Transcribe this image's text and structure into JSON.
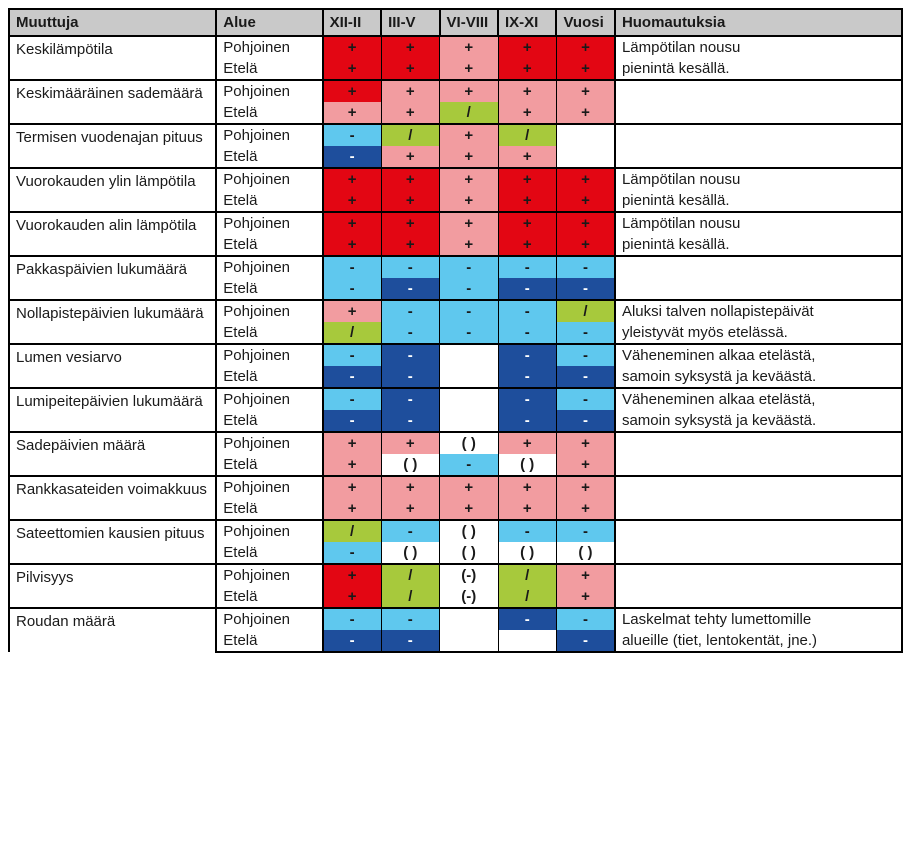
{
  "colors": {
    "red": "#e30613",
    "pink": "#f29ca0",
    "lightblue": "#5fc8ee",
    "darkblue": "#1e4e9c",
    "green": "#a7c93c",
    "white": "#ffffff",
    "header_bg": "#c9c9c9"
  },
  "headers": {
    "var": "Muuttuja",
    "alue": "Alue",
    "s1": "XII-II",
    "s2": "III-V",
    "s3": "VI-VIII",
    "s4": "IX-XI",
    "s5": "Vuosi",
    "note": "Huomautuksia"
  },
  "region_labels": {
    "north": "Pohjoinen",
    "south": "Etelä"
  },
  "rows": [
    {
      "var": "Keskilämpötila",
      "note": [
        "Lämpötilan nousu",
        "pienintä kesällä."
      ],
      "north": [
        {
          "v": "+",
          "c": "red"
        },
        {
          "v": "+",
          "c": "red"
        },
        {
          "v": "+",
          "c": "pink"
        },
        {
          "v": "+",
          "c": "red"
        },
        {
          "v": "+",
          "c": "red"
        }
      ],
      "south": [
        {
          "v": "+",
          "c": "red"
        },
        {
          "v": "+",
          "c": "red"
        },
        {
          "v": "+",
          "c": "pink"
        },
        {
          "v": "+",
          "c": "red"
        },
        {
          "v": "+",
          "c": "red"
        }
      ]
    },
    {
      "var": "Keskimääräinen sademäärä",
      "note": [
        "",
        ""
      ],
      "north": [
        {
          "v": "+",
          "c": "red"
        },
        {
          "v": "+",
          "c": "pink"
        },
        {
          "v": "+",
          "c": "pink"
        },
        {
          "v": "+",
          "c": "pink"
        },
        {
          "v": "+",
          "c": "pink"
        }
      ],
      "south": [
        {
          "v": "+",
          "c": "pink"
        },
        {
          "v": "+",
          "c": "pink"
        },
        {
          "v": "/",
          "c": "green"
        },
        {
          "v": "+",
          "c": "pink"
        },
        {
          "v": "+",
          "c": "pink"
        }
      ]
    },
    {
      "var": "Termisen vuodenajan pituus",
      "note": [
        "",
        ""
      ],
      "north": [
        {
          "v": "-",
          "c": "lightblue"
        },
        {
          "v": "/",
          "c": "green"
        },
        {
          "v": "+",
          "c": "pink"
        },
        {
          "v": "/",
          "c": "green"
        },
        {
          "v": "",
          "c": "white"
        }
      ],
      "south": [
        {
          "v": "-",
          "c": "darkblue"
        },
        {
          "v": "+",
          "c": "pink"
        },
        {
          "v": "+",
          "c": "pink"
        },
        {
          "v": "+",
          "c": "pink"
        },
        {
          "v": "",
          "c": "white"
        }
      ]
    },
    {
      "var": "Vuorokauden ylin lämpötila",
      "note": [
        "Lämpötilan nousu",
        "pienintä kesällä."
      ],
      "north": [
        {
          "v": "+",
          "c": "red"
        },
        {
          "v": "+",
          "c": "red"
        },
        {
          "v": "+",
          "c": "pink"
        },
        {
          "v": "+",
          "c": "red"
        },
        {
          "v": "+",
          "c": "red"
        }
      ],
      "south": [
        {
          "v": "+",
          "c": "red"
        },
        {
          "v": "+",
          "c": "red"
        },
        {
          "v": "+",
          "c": "pink"
        },
        {
          "v": "+",
          "c": "red"
        },
        {
          "v": "+",
          "c": "red"
        }
      ]
    },
    {
      "var": "Vuorokauden alin lämpötila",
      "note": [
        "Lämpötilan nousu",
        "pienintä kesällä."
      ],
      "north": [
        {
          "v": "+",
          "c": "red"
        },
        {
          "v": "+",
          "c": "red"
        },
        {
          "v": "+",
          "c": "pink"
        },
        {
          "v": "+",
          "c": "red"
        },
        {
          "v": "+",
          "c": "red"
        }
      ],
      "south": [
        {
          "v": "+",
          "c": "red"
        },
        {
          "v": "+",
          "c": "red"
        },
        {
          "v": "+",
          "c": "pink"
        },
        {
          "v": "+",
          "c": "red"
        },
        {
          "v": "+",
          "c": "red"
        }
      ]
    },
    {
      "var": "Pakkaspäivien lukumäärä",
      "note": [
        "",
        ""
      ],
      "north": [
        {
          "v": "-",
          "c": "lightblue"
        },
        {
          "v": "-",
          "c": "lightblue"
        },
        {
          "v": "-",
          "c": "lightblue"
        },
        {
          "v": "-",
          "c": "lightblue"
        },
        {
          "v": "-",
          "c": "lightblue"
        }
      ],
      "south": [
        {
          "v": "-",
          "c": "lightblue"
        },
        {
          "v": "-",
          "c": "darkblue"
        },
        {
          "v": "-",
          "c": "lightblue"
        },
        {
          "v": "-",
          "c": "darkblue"
        },
        {
          "v": "-",
          "c": "darkblue"
        }
      ]
    },
    {
      "var": "Nollapistepäivien lukumäärä",
      "note": [
        "Aluksi talven nollapistepäivät",
        "yleistyvät myös etelässä."
      ],
      "north": [
        {
          "v": "+",
          "c": "pink"
        },
        {
          "v": "-",
          "c": "lightblue"
        },
        {
          "v": "-",
          "c": "lightblue"
        },
        {
          "v": "-",
          "c": "lightblue"
        },
        {
          "v": "/",
          "c": "green"
        }
      ],
      "south": [
        {
          "v": "/",
          "c": "green"
        },
        {
          "v": "-",
          "c": "lightblue"
        },
        {
          "v": "-",
          "c": "lightblue"
        },
        {
          "v": "-",
          "c": "lightblue"
        },
        {
          "v": "-",
          "c": "lightblue"
        }
      ]
    },
    {
      "var": "Lumen vesiarvo",
      "note": [
        "Väheneminen alkaa etelästä,",
        "samoin syksystä ja keväästä."
      ],
      "north": [
        {
          "v": "-",
          "c": "lightblue"
        },
        {
          "v": "-",
          "c": "darkblue"
        },
        {
          "v": "",
          "c": "white"
        },
        {
          "v": "-",
          "c": "darkblue"
        },
        {
          "v": "-",
          "c": "lightblue"
        }
      ],
      "south": [
        {
          "v": "-",
          "c": "darkblue"
        },
        {
          "v": "-",
          "c": "darkblue"
        },
        {
          "v": "",
          "c": "white"
        },
        {
          "v": "-",
          "c": "darkblue"
        },
        {
          "v": "-",
          "c": "darkblue"
        }
      ]
    },
    {
      "var": "Lumipeitepäivien lukumäärä",
      "note": [
        "Väheneminen alkaa etelästä,",
        "samoin syksystä ja keväästä."
      ],
      "north": [
        {
          "v": "-",
          "c": "lightblue"
        },
        {
          "v": "-",
          "c": "darkblue"
        },
        {
          "v": "",
          "c": "white"
        },
        {
          "v": "-",
          "c": "darkblue"
        },
        {
          "v": "-",
          "c": "lightblue"
        }
      ],
      "south": [
        {
          "v": "-",
          "c": "darkblue"
        },
        {
          "v": "-",
          "c": "darkblue"
        },
        {
          "v": "",
          "c": "white"
        },
        {
          "v": "-",
          "c": "darkblue"
        },
        {
          "v": "-",
          "c": "darkblue"
        }
      ]
    },
    {
      "var": "Sadepäivien määrä",
      "note": [
        "",
        ""
      ],
      "north": [
        {
          "v": "+",
          "c": "pink"
        },
        {
          "v": "+",
          "c": "pink"
        },
        {
          "v": "( )",
          "c": "white"
        },
        {
          "v": "+",
          "c": "pink"
        },
        {
          "v": "+",
          "c": "pink"
        }
      ],
      "south": [
        {
          "v": "+",
          "c": "pink"
        },
        {
          "v": "( )",
          "c": "white"
        },
        {
          "v": "-",
          "c": "lightblue"
        },
        {
          "v": "( )",
          "c": "white"
        },
        {
          "v": "+",
          "c": "pink"
        }
      ]
    },
    {
      "var": "Rankkasateiden voimakkuus",
      "note": [
        "",
        ""
      ],
      "north": [
        {
          "v": "+",
          "c": "pink"
        },
        {
          "v": "+",
          "c": "pink"
        },
        {
          "v": "+",
          "c": "pink"
        },
        {
          "v": "+",
          "c": "pink"
        },
        {
          "v": "+",
          "c": "pink"
        }
      ],
      "south": [
        {
          "v": "+",
          "c": "pink"
        },
        {
          "v": "+",
          "c": "pink"
        },
        {
          "v": "+",
          "c": "pink"
        },
        {
          "v": "+",
          "c": "pink"
        },
        {
          "v": "+",
          "c": "pink"
        }
      ]
    },
    {
      "var": "Sateettomien kausien pituus",
      "note": [
        "",
        ""
      ],
      "north": [
        {
          "v": "/",
          "c": "green"
        },
        {
          "v": "-",
          "c": "lightblue"
        },
        {
          "v": "( )",
          "c": "white"
        },
        {
          "v": "-",
          "c": "lightblue"
        },
        {
          "v": "-",
          "c": "lightblue"
        }
      ],
      "south": [
        {
          "v": "-",
          "c": "lightblue"
        },
        {
          "v": "( )",
          "c": "white"
        },
        {
          "v": "( )",
          "c": "white"
        },
        {
          "v": "( )",
          "c": "white"
        },
        {
          "v": "( )",
          "c": "white"
        }
      ]
    },
    {
      "var": "Pilvisyys",
      "note": [
        "",
        ""
      ],
      "north": [
        {
          "v": "+",
          "c": "red"
        },
        {
          "v": "/",
          "c": "green"
        },
        {
          "v": "(-)",
          "c": "white"
        },
        {
          "v": "/",
          "c": "green"
        },
        {
          "v": "+",
          "c": "pink"
        }
      ],
      "south": [
        {
          "v": "+",
          "c": "red"
        },
        {
          "v": "/",
          "c": "green"
        },
        {
          "v": "(-)",
          "c": "white"
        },
        {
          "v": "/",
          "c": "green"
        },
        {
          "v": "+",
          "c": "pink"
        }
      ]
    },
    {
      "var": "Roudan määrä",
      "note": [
        "Laskelmat tehty lumettomille",
        "alueille (tiet, lentokentät, jne.)"
      ],
      "north": [
        {
          "v": "-",
          "c": "lightblue"
        },
        {
          "v": "-",
          "c": "lightblue"
        },
        {
          "v": "",
          "c": "white"
        },
        {
          "v": "-",
          "c": "darkblue"
        },
        {
          "v": "-",
          "c": "lightblue"
        }
      ],
      "south": [
        {
          "v": "-",
          "c": "darkblue"
        },
        {
          "v": "-",
          "c": "darkblue"
        },
        {
          "v": "",
          "c": "white"
        },
        {
          "v": "",
          "c": "white"
        },
        {
          "v": "-",
          "c": "darkblue"
        }
      ]
    }
  ]
}
